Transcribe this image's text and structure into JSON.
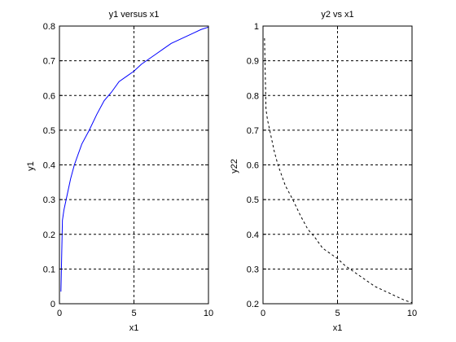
{
  "chart_data": [
    {
      "type": "line",
      "title": "y1 versus x1",
      "xlabel": "x1",
      "ylabel": "y1",
      "xlim": [
        0,
        10
      ],
      "ylim": [
        0,
        0.8
      ],
      "xticks": [
        0,
        5,
        10
      ],
      "yticks": [
        0,
        0.1,
        0.2,
        0.3,
        0.4,
        0.5,
        0.6,
        0.7,
        0.8
      ],
      "grid": true,
      "series": [
        {
          "line_style": "solid",
          "color": "#0000ff",
          "x": [
            0.1,
            0.2,
            0.3,
            0.5,
            0.75,
            1,
            1.5,
            2,
            2.5,
            3,
            3.5,
            4,
            4.5,
            5,
            5.5,
            6,
            6.5,
            7,
            7.5,
            8,
            8.5,
            9,
            9.5,
            10
          ],
          "y": [
            0.035,
            0.24,
            0.27,
            0.31,
            0.36,
            0.4,
            0.46,
            0.5,
            0.545,
            0.585,
            0.61,
            0.64,
            0.655,
            0.67,
            0.69,
            0.705,
            0.72,
            0.735,
            0.75,
            0.76,
            0.77,
            0.78,
            0.79,
            0.797
          ]
        }
      ]
    },
    {
      "type": "line",
      "title": "y2 vs x1",
      "xlabel": "x1",
      "ylabel": "y22",
      "xlim": [
        0,
        10
      ],
      "ylim": [
        0.2,
        1
      ],
      "xticks": [
        0,
        5,
        10
      ],
      "yticks": [
        0.2,
        0.3,
        0.4,
        0.5,
        0.6,
        0.7,
        0.8,
        0.9,
        1
      ],
      "grid": true,
      "series": [
        {
          "line_style": "dashed",
          "color": "#000000",
          "x": [
            0.1,
            0.2,
            0.3,
            0.5,
            0.75,
            1,
            1.5,
            2,
            2.5,
            3,
            3.5,
            4,
            4.5,
            5,
            5.5,
            6,
            6.5,
            7,
            7.5,
            8,
            8.5,
            9,
            9.5,
            10
          ],
          "y": [
            0.965,
            0.76,
            0.73,
            0.69,
            0.64,
            0.6,
            0.54,
            0.5,
            0.455,
            0.415,
            0.39,
            0.36,
            0.345,
            0.33,
            0.31,
            0.295,
            0.28,
            0.265,
            0.25,
            0.24,
            0.23,
            0.22,
            0.21,
            0.203
          ]
        }
      ]
    }
  ]
}
